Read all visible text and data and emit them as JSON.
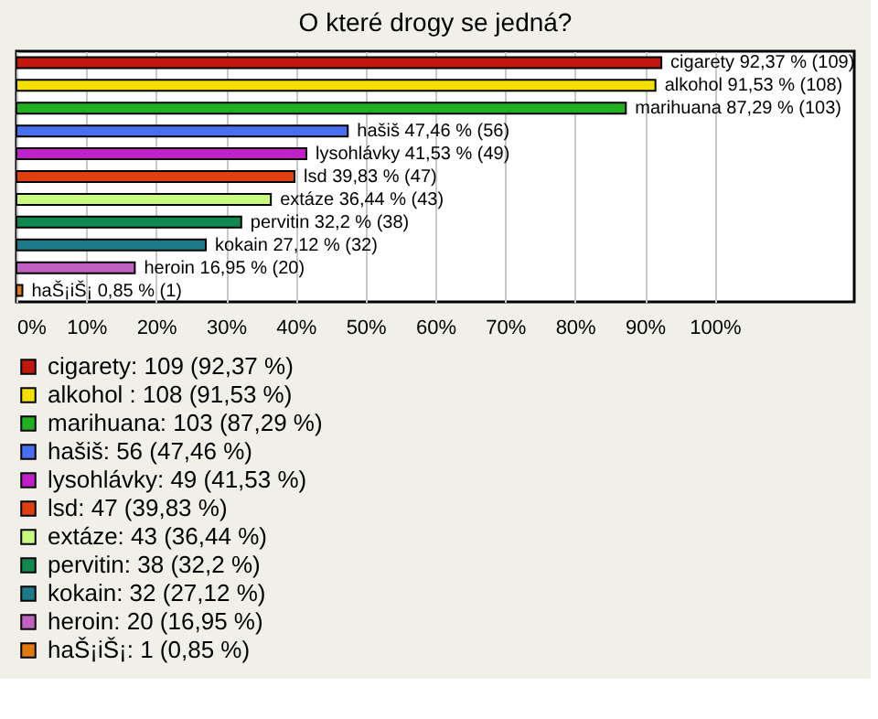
{
  "chart_data": {
    "type": "bar",
    "orientation": "horizontal",
    "title": "O které drogy se jedná?",
    "categories": [
      null,
      null,
      null,
      null,
      null,
      null,
      null,
      null,
      null,
      null,
      null
    ],
    "series": [
      {
        "name": "cigarety: 109 (92,37 %)",
        "color": "#c0180c",
        "values": [
          92.37,
          null,
          null,
          null,
          null,
          null,
          null,
          null,
          null,
          null,
          null
        ],
        "value_labels": [
          "cigarety 92,37 % (109)",
          null,
          null,
          null,
          null,
          null,
          null,
          null,
          null,
          null,
          null
        ]
      },
      {
        "name": "alkohol : 108 (91,53 %)",
        "color": "#f5e000",
        "values": [
          null,
          91.53,
          null,
          null,
          null,
          null,
          null,
          null,
          null,
          null,
          null
        ],
        "value_labels": [
          null,
          "alkohol 91,53 % (108)",
          null,
          null,
          null,
          null,
          null,
          null,
          null,
          null,
          null
        ]
      },
      {
        "name": "marihuana: 103 (87,29 %)",
        "color": "#20b020",
        "values": [
          null,
          null,
          87.29,
          null,
          null,
          null,
          null,
          null,
          null,
          null,
          null
        ],
        "value_labels": [
          null,
          null,
          "marihuana 87,29 % (103)",
          null,
          null,
          null,
          null,
          null,
          null,
          null,
          null
        ]
      },
      {
        "name": "hašiš: 56 (47,46 %)",
        "color": "#4a6ef0",
        "values": [
          null,
          null,
          null,
          47.46,
          null,
          null,
          null,
          null,
          null,
          null,
          null
        ],
        "value_labels": [
          null,
          null,
          null,
          "hašiš 47,46 % (56)",
          null,
          null,
          null,
          null,
          null,
          null,
          null
        ]
      },
      {
        "name": "lysohlávky: 49 (41,53 %)",
        "color": "#c020c8",
        "values": [
          null,
          null,
          null,
          null,
          41.53,
          null,
          null,
          null,
          null,
          null,
          null
        ],
        "value_labels": [
          null,
          null,
          null,
          null,
          "lysohlávky 41,53 % (49)",
          null,
          null,
          null,
          null,
          null,
          null
        ]
      },
      {
        "name": "lsd: 47 (39,83 %)",
        "color": "#e04010",
        "values": [
          null,
          null,
          null,
          null,
          null,
          39.83,
          null,
          null,
          null,
          null,
          null
        ],
        "value_labels": [
          null,
          null,
          null,
          null,
          null,
          "lsd 39,83 % (47)",
          null,
          null,
          null,
          null,
          null
        ]
      },
      {
        "name": "extáze: 43 (36,44 %)",
        "color": "#c8fa80",
        "values": [
          null,
          null,
          null,
          null,
          null,
          null,
          36.44,
          null,
          null,
          null,
          null
        ],
        "value_labels": [
          null,
          null,
          null,
          null,
          null,
          null,
          "extáze 36,44 % (43)",
          null,
          null,
          null,
          null
        ]
      },
      {
        "name": "pervitin: 38 (32,2 %)",
        "color": "#108850",
        "values": [
          null,
          null,
          null,
          null,
          null,
          null,
          null,
          32.2,
          null,
          null,
          null
        ],
        "value_labels": [
          null,
          null,
          null,
          null,
          null,
          null,
          null,
          "pervitin 32,2 % (38)",
          null,
          null,
          null
        ]
      },
      {
        "name": "kokain: 32 (27,12 %)",
        "color": "#1a7a88",
        "values": [
          null,
          null,
          null,
          null,
          null,
          null,
          null,
          null,
          27.12,
          null,
          null
        ],
        "value_labels": [
          null,
          null,
          null,
          null,
          null,
          null,
          null,
          null,
          "kokain 27,12 % (32)",
          null,
          null
        ]
      },
      {
        "name": "heroin: 20 (16,95 %)",
        "color": "#c060c0",
        "values": [
          null,
          null,
          null,
          null,
          null,
          null,
          null,
          null,
          null,
          16.95,
          null
        ],
        "value_labels": [
          null,
          null,
          null,
          null,
          null,
          null,
          null,
          null,
          null,
          "heroin 16,95 % (20)",
          null
        ]
      },
      {
        "name": "haŠ¡iŠ¡: 1 (0,85 %)",
        "color": "#e07a10",
        "values": [
          null,
          null,
          null,
          null,
          null,
          null,
          null,
          null,
          null,
          null,
          0.85
        ],
        "value_labels": [
          null,
          null,
          null,
          null,
          null,
          null,
          null,
          null,
          null,
          null,
          "haŠ¡iŠ¡ 0,85 % (1)"
        ]
      }
    ],
    "xlim": [
      0,
      120
    ],
    "xticks": [
      {
        "value": 0,
        "label": "0%"
      },
      {
        "value": 10,
        "label": "10%"
      },
      {
        "value": 20,
        "label": "20%"
      },
      {
        "value": 30,
        "label": "30%"
      },
      {
        "value": 40,
        "label": "40%"
      },
      {
        "value": 50,
        "label": "50%"
      },
      {
        "value": 60,
        "label": "60%"
      },
      {
        "value": 70,
        "label": "70%"
      },
      {
        "value": 80,
        "label": "80%"
      },
      {
        "value": 90,
        "label": "90%"
      },
      {
        "value": 100,
        "label": "100%"
      }
    ],
    "grid": "x",
    "legend": "bottom",
    "tick_labels": "x"
  }
}
